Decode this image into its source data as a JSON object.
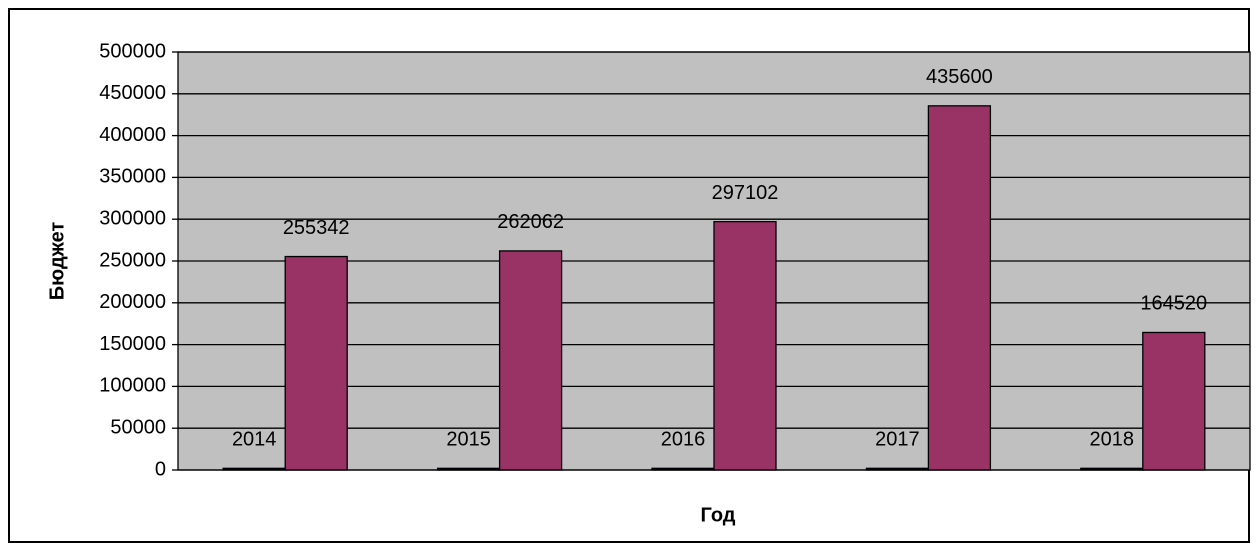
{
  "chart_data": {
    "type": "bar",
    "categories": [
      null,
      null,
      null,
      null,
      null
    ],
    "series": [
      {
        "color": "#000080",
        "values": [
          2014,
          2015,
          2016,
          2017,
          2018
        ]
      },
      {
        "color": "#993366",
        "values": [
          255342,
          262062,
          297102,
          435600,
          164520
        ]
      }
    ],
    "ylabel": "Бюджет",
    "xlabel": "Год",
    "ylim": [
      0,
      500000
    ],
    "yticks": [
      0,
      50000,
      100000,
      150000,
      200000,
      250000,
      300000,
      350000,
      400000,
      450000,
      500000
    ],
    "grid": true,
    "plot_background": "#c0c0c0"
  }
}
